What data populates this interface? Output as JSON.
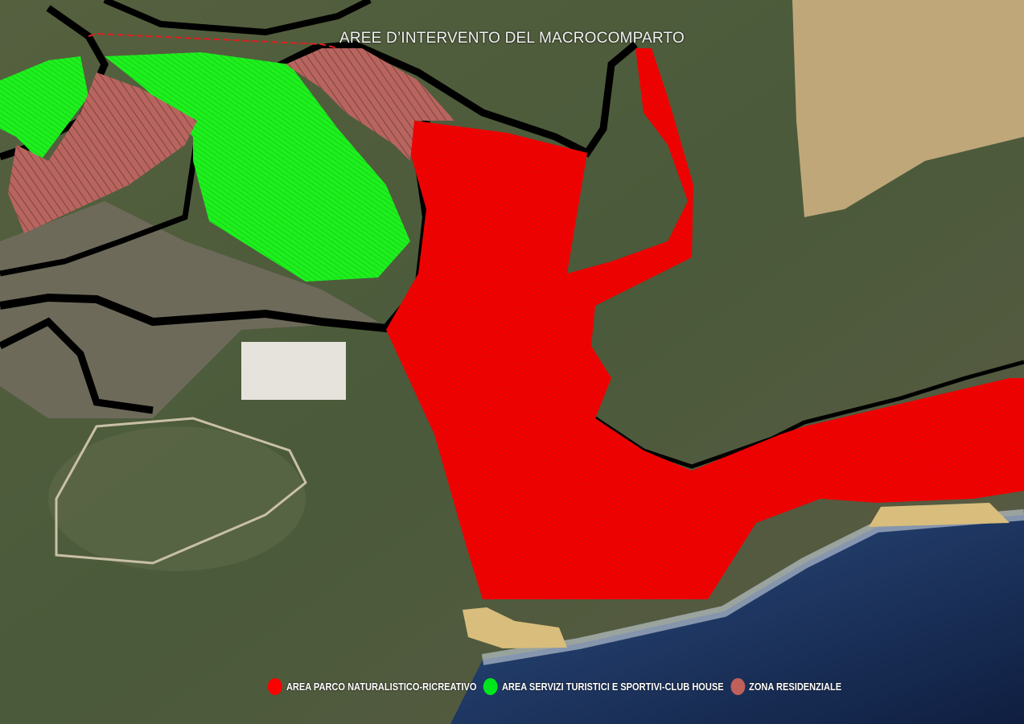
{
  "title": "AREE D’INTERVENTO DEL MACROCOMPARTO",
  "legend": [
    {
      "label": "AREA PARCO NATURALISTICO-RICREATIVO",
      "color": "#ff0000"
    },
    {
      "label": "AREA SERVIZI TURISTICI E SPORTIVI-CLUB HOUSE",
      "color": "#00e61e"
    },
    {
      "label": "ZONA RESIDENZIALE",
      "color": "#c0605a"
    }
  ],
  "colors": {
    "terrain": "#4a5638",
    "dry_field": "#bfa77a",
    "sea": "#1a2d55",
    "road": "#000000",
    "beach": "#d9bd7c"
  }
}
